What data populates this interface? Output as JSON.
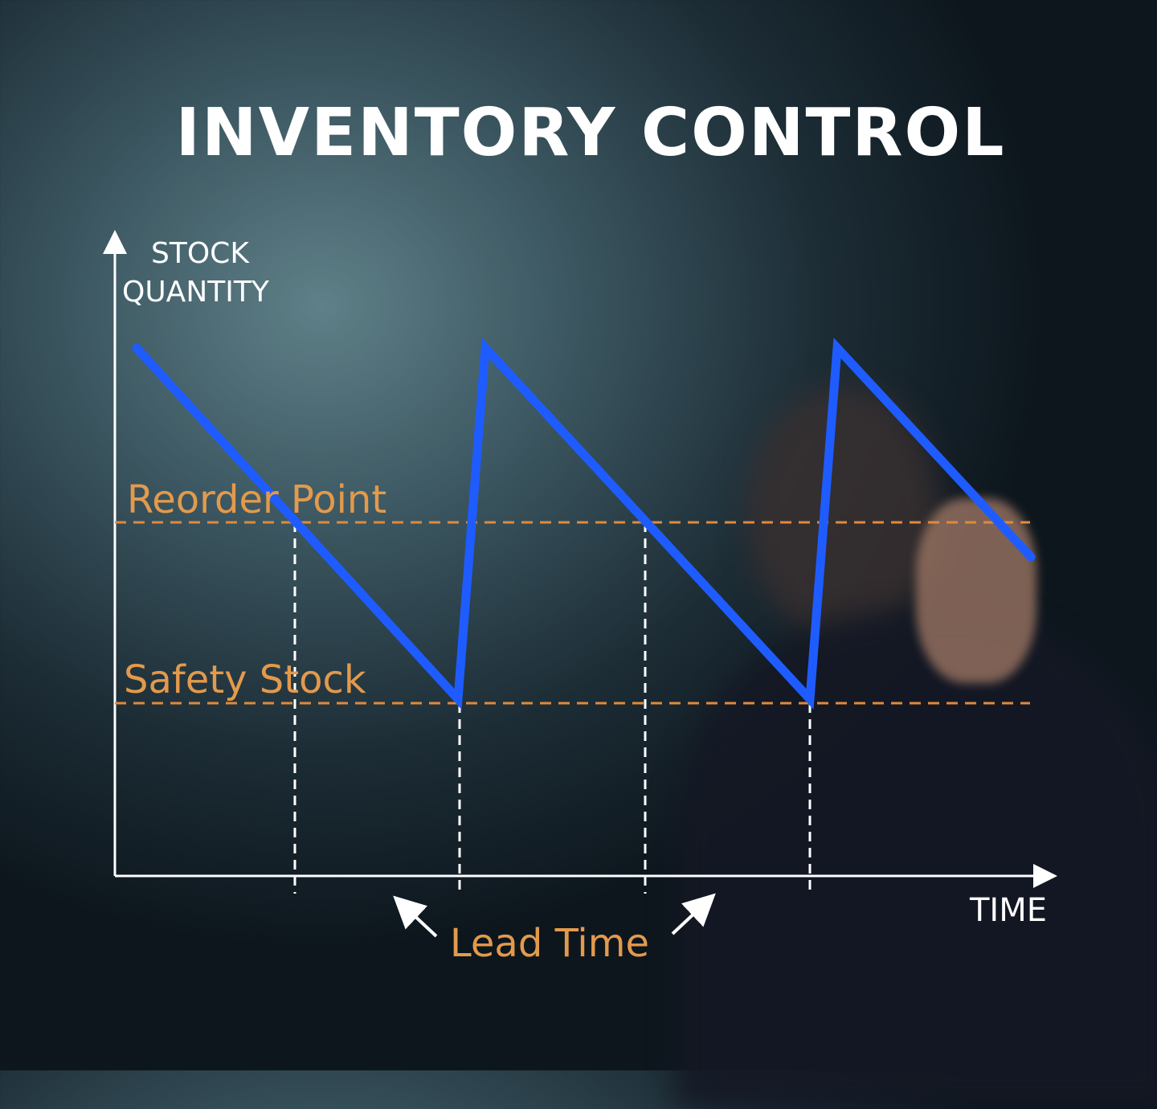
{
  "title": "INVENTORY CONTROL",
  "y_axis_label": [
    "STOCK",
    "QUANTITY"
  ],
  "x_axis_label": "TIME",
  "reorder_point_label": "Reorder Point",
  "safety_stock_label": "Safety Stock",
  "lead_time_label": "Lead Time",
  "colors": {
    "stock_line": "#1f5cff",
    "threshold_lines": "#e08a3c",
    "axes": "#ffffff"
  }
}
